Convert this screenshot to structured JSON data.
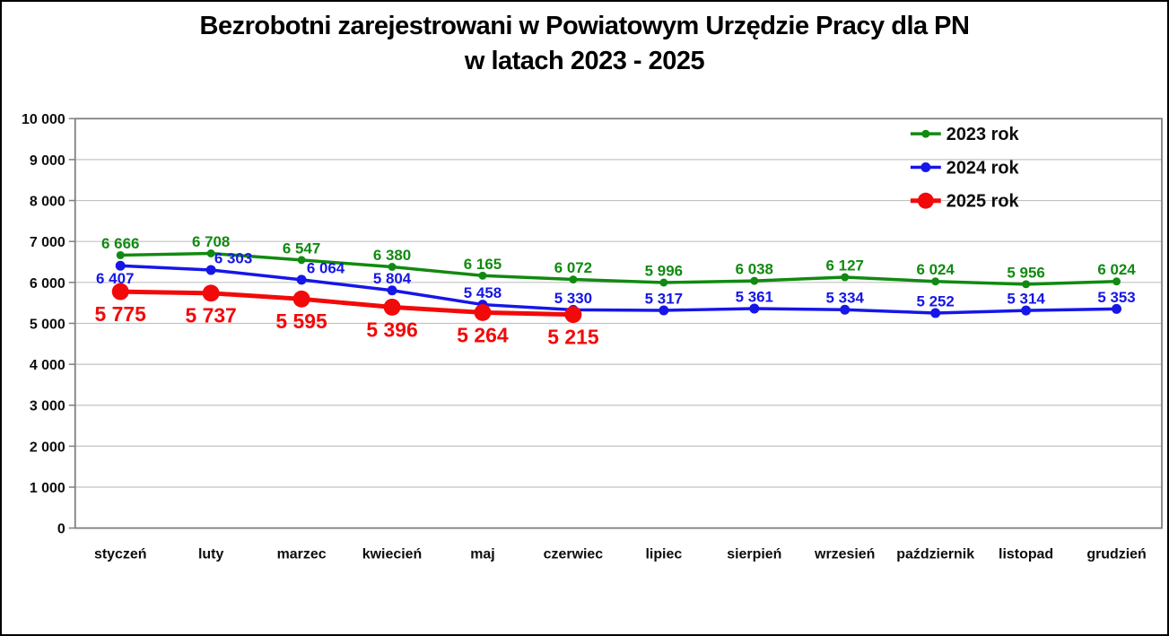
{
  "title": {
    "line1": "Bezrobotni zarejestrowani w Powiatowym Urzędzie Pracy dla PN",
    "line2": "w latach 2023 - 2025"
  },
  "chart_data": {
    "type": "line",
    "title": "Bezrobotni zarejestrowani w Powiatowym Urzędzie Pracy dla PN w latach 2023 - 2025",
    "categories": [
      "styczeń",
      "luty",
      "marzec",
      "kwiecień",
      "maj",
      "czerwiec",
      "lipiec",
      "sierpień",
      "wrzesień",
      "październik",
      "listopad",
      "grudzień"
    ],
    "ylim": [
      0,
      10000
    ],
    "ytick_step": 1000,
    "ytick_labels": [
      "0",
      "1 000",
      "2 000",
      "3 000",
      "4 000",
      "5 000",
      "6 000",
      "7 000",
      "8 000",
      "9 000",
      "10 000"
    ],
    "grid": true,
    "legend_position": "top-right",
    "colors": {
      "grid": "#C3C3C3",
      "border": "#7F7F7F",
      "text": "#0D0D0D"
    },
    "series": [
      {
        "name": "2023 rok",
        "color": "#108A10",
        "values": [
          6666,
          6708,
          6547,
          6380,
          6165,
          6072,
          5996,
          6038,
          6127,
          6024,
          5956,
          6024
        ],
        "line_width": 3.5,
        "marker_radius": 4.5,
        "label_position": "above",
        "label_size": 17
      },
      {
        "name": "2024 rok",
        "color": "#1616E8",
        "values": [
          6407,
          6303,
          6064,
          5804,
          5458,
          5330,
          5317,
          5361,
          5334,
          5252,
          5314,
          5353
        ],
        "line_width": 3.5,
        "marker_radius": 5.5,
        "label_position": "above",
        "label_size": 17,
        "label_overrides": [
          {
            "index": 0,
            "position": "below",
            "dx": -6
          },
          {
            "index": 1,
            "dx": 25
          },
          {
            "index": 2,
            "dx": 27
          }
        ]
      },
      {
        "name": "2025 rok",
        "color": "#F20A0A",
        "values": [
          5775,
          5737,
          5595,
          5396,
          5264,
          5215
        ],
        "line_width": 5,
        "marker_radius": 9.5,
        "label_position": "below",
        "label_size": 23
      }
    ]
  }
}
